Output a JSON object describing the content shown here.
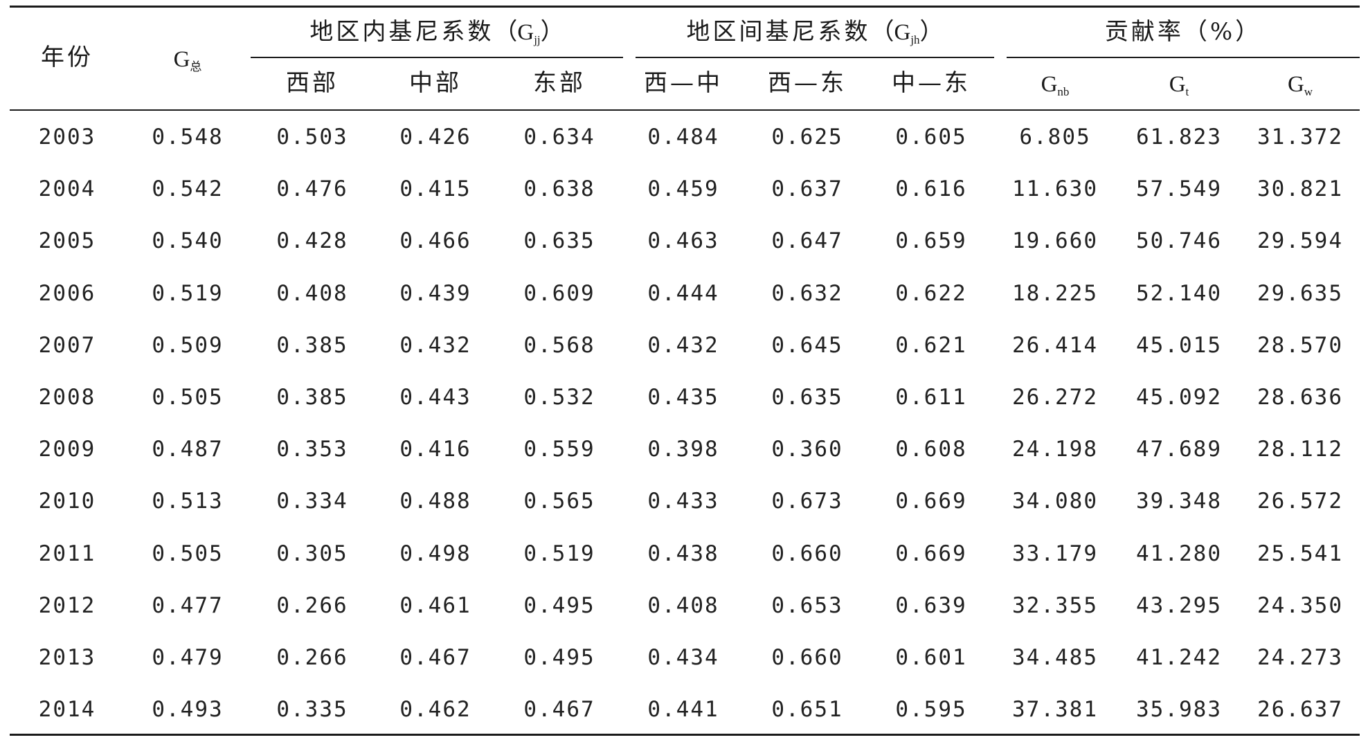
{
  "table": {
    "head": {
      "year": "年份",
      "g_total": {
        "base": "G",
        "sub": "总"
      },
      "within_group": {
        "label": "地区内基尼系数",
        "paren_open": "（",
        "sym_base": "G",
        "sym_sub": "jj",
        "paren_close": "）"
      },
      "between_group": {
        "label": "地区间基尼系数",
        "paren_open": "（",
        "sym_base": "G",
        "sym_sub": "jh",
        "paren_close": "）"
      },
      "contribution_group": {
        "label": "贡献率（%）"
      },
      "sub": {
        "west": "西部",
        "central": "中部",
        "east": "东部",
        "west_central": "西—中",
        "west_east": "西—东",
        "central_east": "中—东",
        "gnb": {
          "base": "G",
          "sub": "nb"
        },
        "gt": {
          "base": "G",
          "sub": "t"
        },
        "gw": {
          "base": "G",
          "sub": "w"
        }
      }
    },
    "rows": [
      [
        "2003",
        "0.548",
        "0.503",
        "0.426",
        "0.634",
        "0.484",
        "0.625",
        "0.605",
        "6.805",
        "61.823",
        "31.372"
      ],
      [
        "2004",
        "0.542",
        "0.476",
        "0.415",
        "0.638",
        "0.459",
        "0.637",
        "0.616",
        "11.630",
        "57.549",
        "30.821"
      ],
      [
        "2005",
        "0.540",
        "0.428",
        "0.466",
        "0.635",
        "0.463",
        "0.647",
        "0.659",
        "19.660",
        "50.746",
        "29.594"
      ],
      [
        "2006",
        "0.519",
        "0.408",
        "0.439",
        "0.609",
        "0.444",
        "0.632",
        "0.622",
        "18.225",
        "52.140",
        "29.635"
      ],
      [
        "2007",
        "0.509",
        "0.385",
        "0.432",
        "0.568",
        "0.432",
        "0.645",
        "0.621",
        "26.414",
        "45.015",
        "28.570"
      ],
      [
        "2008",
        "0.505",
        "0.385",
        "0.443",
        "0.532",
        "0.435",
        "0.635",
        "0.611",
        "26.272",
        "45.092",
        "28.636"
      ],
      [
        "2009",
        "0.487",
        "0.353",
        "0.416",
        "0.559",
        "0.398",
        "0.360",
        "0.608",
        "24.198",
        "47.689",
        "28.112"
      ],
      [
        "2010",
        "0.513",
        "0.334",
        "0.488",
        "0.565",
        "0.433",
        "0.673",
        "0.669",
        "34.080",
        "39.348",
        "26.572"
      ],
      [
        "2011",
        "0.505",
        "0.305",
        "0.498",
        "0.519",
        "0.438",
        "0.660",
        "0.669",
        "33.179",
        "41.280",
        "25.541"
      ],
      [
        "2012",
        "0.477",
        "0.266",
        "0.461",
        "0.495",
        "0.408",
        "0.653",
        "0.639",
        "32.355",
        "43.295",
        "24.350"
      ],
      [
        "2013",
        "0.479",
        "0.266",
        "0.467",
        "0.495",
        "0.434",
        "0.660",
        "0.601",
        "34.485",
        "41.242",
        "24.273"
      ],
      [
        "2014",
        "0.493",
        "0.335",
        "0.462",
        "0.467",
        "0.441",
        "0.651",
        "0.595",
        "37.381",
        "35.983",
        "26.637"
      ]
    ]
  }
}
